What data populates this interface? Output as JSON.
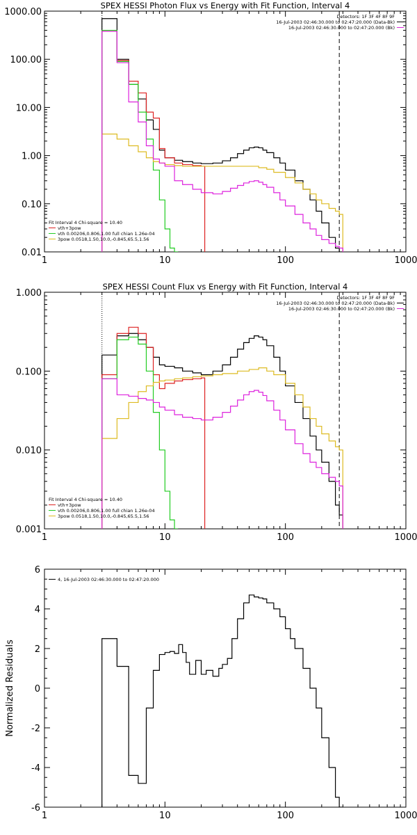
{
  "chart_data": [
    {
      "type": "line",
      "title": "SPEX HESSI Photon Flux vs Energy with Fit Function, Interval 4",
      "xlabel": "",
      "ylabel": "",
      "xscale": "log",
      "yscale": "log",
      "xlim": [
        1,
        1000
      ],
      "ylim": [
        0.01,
        1000
      ],
      "x_ticks": [
        "1",
        "10",
        "100",
        "1000"
      ],
      "y_ticks": [
        "0.01",
        "0.10",
        "1.00",
        "10.00",
        "100.00",
        "1000.00"
      ],
      "marker_lines": [
        {
          "x": 3,
          "style": "dotted",
          "color": "#000000"
        },
        {
          "x": 280,
          "style": "dashed",
          "color": "#000000"
        }
      ],
      "info_lines": [
        "Detectors: 1F 3F 4F 8F 9F",
        "16-Jul-2003 02:46:30.000 to 02:47:20.000 (Data-Bk)",
        "16-Jul-2003 02:46:30.000 to 02:47:20.000 (Bk)"
      ],
      "info_line_colors": [
        "",
        "#000000",
        "#dd22dd"
      ],
      "legend_lines": [
        "Fit Interval  4    Chi-square = 10.40",
        "vth+3pow",
        "vth 0.00206,0.806,1.00  full chian 1.26e-04",
        "3pow 0.0518,1.50,10.0,-0.845,65.5,1.56"
      ],
      "legend_colors": [
        "",
        "#dd2222",
        "#22cc22",
        "#ddbb22"
      ],
      "series": [
        {
          "name": "Data-Bk",
          "color": "#000000",
          "x": [
            3,
            4,
            5,
            6,
            7,
            8,
            9,
            10,
            12,
            14,
            17,
            20,
            25,
            30,
            35,
            40,
            45,
            50,
            55,
            60,
            65,
            70,
            80,
            90,
            100,
            120,
            140,
            160,
            180,
            200,
            230,
            260,
            280
          ],
          "y": [
            700,
            100,
            30,
            15,
            5.5,
            3.5,
            1.3,
            0.9,
            0.8,
            0.75,
            0.7,
            0.68,
            0.7,
            0.78,
            0.9,
            1.1,
            1.3,
            1.45,
            1.5,
            1.45,
            1.3,
            1.15,
            0.9,
            0.7,
            0.5,
            0.3,
            0.2,
            0.12,
            0.07,
            0.04,
            0.02,
            0.012,
            0.01
          ]
        },
        {
          "name": "vth+3pow",
          "color": "#dd2222",
          "x": [
            3,
            4,
            5,
            6,
            7,
            8,
            9,
            10,
            12,
            14,
            17,
            20
          ],
          "y": [
            400,
            95,
            35,
            20,
            8,
            6,
            1.4,
            0.9,
            0.7,
            0.65,
            0.62,
            0.6
          ]
        },
        {
          "name": "vth",
          "color": "#22cc22",
          "x": [
            3,
            4,
            5,
            6,
            7,
            8,
            9,
            10,
            11,
            12
          ],
          "y": [
            400,
            90,
            30,
            8,
            2.2,
            0.5,
            0.12,
            0.03,
            0.012,
            0.01
          ]
        },
        {
          "name": "3pow",
          "color": "#ddbb22",
          "x": [
            3,
            4,
            5,
            6,
            7,
            8,
            9,
            10,
            12,
            14,
            17,
            20,
            25,
            30,
            40,
            50,
            60,
            70,
            80,
            100,
            120,
            140,
            160,
            180,
            200,
            230,
            260,
            280
          ],
          "y": [
            2.8,
            2.2,
            1.6,
            1.2,
            0.9,
            0.75,
            0.7,
            0.65,
            0.62,
            0.6,
            0.6,
            0.6,
            0.6,
            0.6,
            0.6,
            0.6,
            0.56,
            0.52,
            0.45,
            0.35,
            0.27,
            0.2,
            0.16,
            0.12,
            0.1,
            0.08,
            0.07,
            0.06
          ]
        },
        {
          "name": "Bk",
          "color": "#dd22dd",
          "x": [
            3,
            4,
            5,
            6,
            7,
            8,
            9,
            10,
            12,
            14,
            17,
            20,
            25,
            30,
            35,
            40,
            45,
            50,
            55,
            60,
            65,
            70,
            80,
            90,
            100,
            120,
            140,
            160,
            180,
            200,
            230,
            260,
            280
          ],
          "y": [
            380,
            85,
            13,
            5,
            1.6,
            0.85,
            0.7,
            0.6,
            0.3,
            0.25,
            0.2,
            0.17,
            0.16,
            0.18,
            0.21,
            0.24,
            0.27,
            0.29,
            0.3,
            0.28,
            0.25,
            0.22,
            0.17,
            0.12,
            0.09,
            0.06,
            0.04,
            0.03,
            0.022,
            0.018,
            0.015,
            0.013,
            0.012
          ]
        }
      ]
    },
    {
      "type": "line",
      "title": "SPEX HESSI Count Flux vs Energy with Fit Function, Interval 4",
      "xlabel": "",
      "ylabel": "",
      "xscale": "log",
      "yscale": "log",
      "xlim": [
        1,
        1000
      ],
      "ylim": [
        0.001,
        1
      ],
      "x_ticks": [
        "1",
        "10",
        "100",
        "1000"
      ],
      "y_ticks": [
        "0.001",
        "0.010",
        "0.100",
        "1.000"
      ],
      "marker_lines": [
        {
          "x": 3,
          "style": "dotted",
          "color": "#000000"
        },
        {
          "x": 280,
          "style": "dashed",
          "color": "#000000"
        }
      ],
      "info_lines": [
        "Detectors: 1F 3F 4F 8F 9F",
        "16-Jul-2003 02:46:30.000 to 02:47:20.000 (Data-Bk)",
        "16-Jul-2003 02:46:30.000 to 02:47:20.000 (Bk)"
      ],
      "info_line_colors": [
        "",
        "#000000",
        "#dd22dd"
      ],
      "legend_lines": [
        "Fit Interval  4    Chi-square = 10.40",
        "vth+3pow",
        "vth 0.00206,0.806,1.00  full chian 1.26e-04",
        "3pow 0.0518,1.50,10.0,-0.845,65.5,1.56"
      ],
      "legend_colors": [
        "",
        "#dd2222",
        "#22cc22",
        "#ddbb22"
      ],
      "series": [
        {
          "name": "Data-Bk",
          "color": "#000000",
          "x": [
            3,
            4,
            5,
            6,
            7,
            8,
            9,
            10,
            12,
            14,
            17,
            20,
            25,
            30,
            35,
            40,
            45,
            50,
            55,
            60,
            65,
            70,
            80,
            90,
            100,
            120,
            140,
            160,
            180,
            200,
            230,
            260,
            280
          ],
          "y": [
            0.16,
            0.28,
            0.3,
            0.25,
            0.2,
            0.15,
            0.12,
            0.115,
            0.11,
            0.1,
            0.095,
            0.09,
            0.1,
            0.12,
            0.15,
            0.19,
            0.23,
            0.26,
            0.28,
            0.27,
            0.25,
            0.21,
            0.15,
            0.1,
            0.065,
            0.04,
            0.025,
            0.015,
            0.01,
            0.007,
            0.004,
            0.002,
            0.0015
          ]
        },
        {
          "name": "vth+3pow",
          "color": "#dd2222",
          "x": [
            3,
            4,
            5,
            6,
            7,
            8,
            9,
            10,
            12,
            14,
            17,
            20
          ],
          "y": [
            0.09,
            0.3,
            0.36,
            0.3,
            0.2,
            0.09,
            0.06,
            0.07,
            0.075,
            0.078,
            0.08,
            0.082
          ]
        },
        {
          "name": "vth",
          "color": "#22cc22",
          "x": [
            3,
            4,
            5,
            6,
            7,
            8,
            9,
            10,
            11,
            12
          ],
          "y": [
            0.08,
            0.25,
            0.27,
            0.22,
            0.1,
            0.03,
            0.01,
            0.003,
            0.0013,
            0.001
          ]
        },
        {
          "name": "3pow",
          "color": "#ddbb22",
          "x": [
            3,
            4,
            5,
            6,
            7,
            8,
            9,
            10,
            12,
            14,
            17,
            20,
            25,
            30,
            40,
            50,
            60,
            70,
            80,
            100,
            120,
            140,
            160,
            180,
            200,
            230,
            260,
            280
          ],
          "y": [
            0.014,
            0.025,
            0.04,
            0.055,
            0.065,
            0.072,
            0.075,
            0.077,
            0.08,
            0.082,
            0.085,
            0.087,
            0.09,
            0.093,
            0.1,
            0.105,
            0.11,
            0.1,
            0.09,
            0.07,
            0.05,
            0.035,
            0.025,
            0.02,
            0.016,
            0.013,
            0.011,
            0.01
          ]
        },
        {
          "name": "Bk",
          "color": "#dd22dd",
          "x": [
            3,
            4,
            5,
            6,
            7,
            8,
            9,
            10,
            12,
            14,
            17,
            20,
            25,
            30,
            35,
            40,
            45,
            50,
            55,
            60,
            65,
            70,
            80,
            90,
            100,
            120,
            140,
            160,
            180,
            200,
            230,
            260,
            280
          ],
          "y": [
            0.08,
            0.05,
            0.048,
            0.045,
            0.043,
            0.04,
            0.035,
            0.032,
            0.028,
            0.026,
            0.025,
            0.024,
            0.026,
            0.03,
            0.036,
            0.043,
            0.05,
            0.055,
            0.057,
            0.054,
            0.049,
            0.042,
            0.032,
            0.024,
            0.018,
            0.012,
            0.009,
            0.007,
            0.006,
            0.005,
            0.0045,
            0.004,
            0.0035
          ]
        }
      ]
    },
    {
      "type": "line",
      "title": "",
      "xlabel": "",
      "ylabel": "Normalized Residuals",
      "xscale": "log",
      "yscale": "linear",
      "xlim": [
        1,
        1000
      ],
      "ylim": [
        -6,
        6
      ],
      "x_ticks": [
        "1",
        "10",
        "100",
        "1000"
      ],
      "y_ticks": [
        "-6",
        "-4",
        "-2",
        "0",
        "2",
        "4",
        "6"
      ],
      "legend_lines": [
        "4, 16-Jul-2003 02:46:30.000 to 02:47:20.000"
      ],
      "legend_colors": [
        "#000000"
      ],
      "series": [
        {
          "name": "4, 16-Jul-2003 02:46:30.000 to 02:47:20.000",
          "color": "#000000",
          "x": [
            3,
            4,
            5,
            6,
            7,
            8,
            9,
            10,
            11,
            12,
            13,
            14,
            15,
            16,
            18,
            20,
            22,
            25,
            28,
            30,
            33,
            36,
            40,
            45,
            50,
            55,
            60,
            65,
            70,
            80,
            90,
            100,
            110,
            120,
            140,
            160,
            180,
            200,
            230,
            260,
            280
          ],
          "y": [
            2.5,
            1.1,
            -4.4,
            -4.8,
            -1.0,
            0.9,
            1.7,
            1.8,
            1.85,
            1.75,
            2.2,
            1.8,
            1.3,
            0.7,
            1.4,
            0.7,
            0.9,
            0.6,
            1.0,
            1.2,
            1.5,
            2.5,
            3.5,
            4.3,
            4.7,
            4.6,
            4.55,
            4.5,
            4.3,
            4.0,
            3.6,
            3.0,
            2.5,
            2.0,
            1.0,
            0.0,
            -1.0,
            -2.5,
            -4.0,
            -5.5,
            -6.0
          ]
        }
      ]
    }
  ]
}
